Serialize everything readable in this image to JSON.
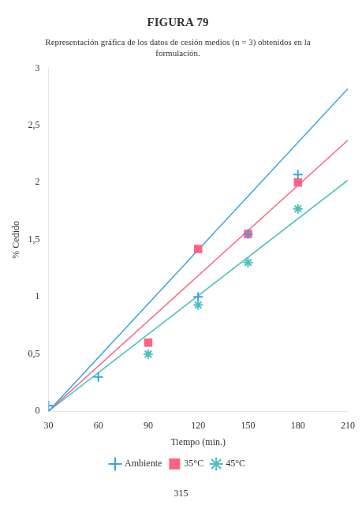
{
  "chart_data": {
    "type": "scatter",
    "title": "FIGURA 79",
    "subtitle": [
      "Representación gráfica de los datos de cesión medios (n = 3) obtenidos en la",
      "formulación."
    ],
    "annotations": [
      "315"
    ],
    "xlabel": "Tiempo (min.)",
    "ylabel": "% Cedido",
    "xlim": [
      30,
      210
    ],
    "ylim": [
      0,
      3
    ],
    "xticks": [
      30,
      60,
      90,
      120,
      150,
      180,
      210
    ],
    "yticks": [
      0,
      {
        "value": 0.5,
        "label": "0,5"
      },
      1,
      {
        "value": 1.5,
        "label": "1,5"
      },
      2,
      {
        "value": 2.5,
        "label": "2,5"
      },
      3
    ],
    "grid": false,
    "legend": "bottom",
    "series": [
      {
        "name": "Ambiente",
        "marker": "cross",
        "color": "#36a2eb",
        "x": [
          30,
          60,
          120,
          150,
          180
        ],
        "values": [
          0.05,
          0.3,
          1.0,
          1.55,
          2.07
        ],
        "fit_x": [
          30,
          210
        ],
        "fit_values": [
          0.0,
          2.82
        ]
      },
      {
        "name": "35°C",
        "marker": "square",
        "color": "#ff6384",
        "x": [
          90,
          120,
          150,
          180
        ],
        "values": [
          0.6,
          1.42,
          1.55,
          2.0
        ],
        "fit_x": [
          30,
          210
        ],
        "fit_values": [
          0.0,
          2.37
        ]
      },
      {
        "name": "45°C",
        "marker": "star",
        "color": "#4bc0c0",
        "x": [
          90,
          120,
          150,
          180
        ],
        "values": [
          0.5,
          0.93,
          1.3,
          1.77
        ],
        "fit_x": [
          30,
          210
        ],
        "fit_values": [
          0.0,
          2.02
        ]
      }
    ]
  }
}
